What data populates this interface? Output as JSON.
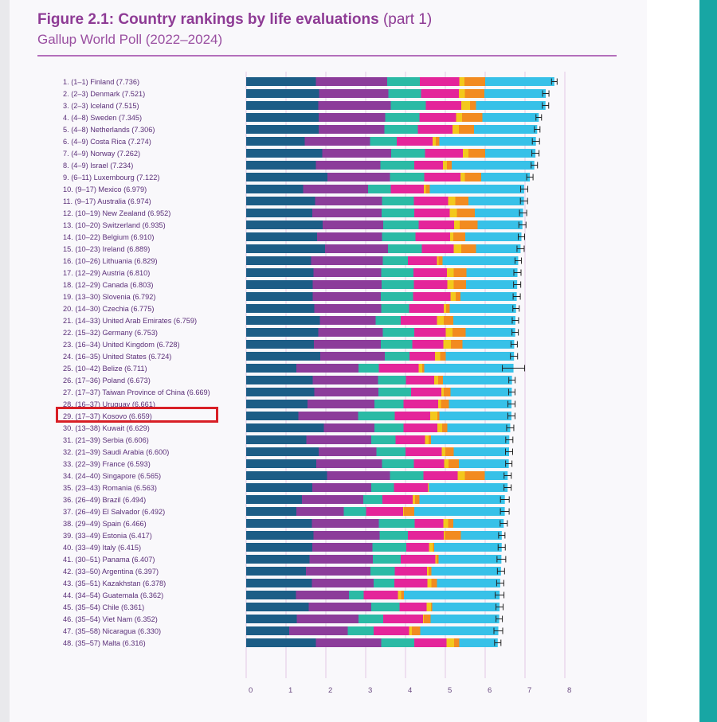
{
  "header": {
    "title": "Figure 2.1: Country rankings by life evaluations",
    "title_part": "(part 1)",
    "subtitle": "Gallup World Poll (2022–2024)"
  },
  "colors": {
    "dystopia_residual": "#37c1e8",
    "gdp": "#1c5d86",
    "social_support": "#8c3c9a",
    "healthy_life": "#2bbaa5",
    "freedom": "#e4259a",
    "generosity": "#f3c81c",
    "corruption": "#f28b20",
    "highlight": "#d81f26"
  },
  "highlight_rank": 29,
  "chart_data": {
    "type": "bar",
    "stacked": true,
    "orientation": "horizontal",
    "xlim": [
      0,
      8
    ],
    "x_ticks": [
      "0",
      "1",
      "2",
      "3",
      "4",
      "5",
      "6",
      "7",
      "8"
    ],
    "rows": [
      {
        "label": "1.   (1–1) Finland (7.736)",
        "value": 7.736,
        "ci": 0.07,
        "parts": [
          1.75,
          1.79,
          0.82,
          0.99,
          0.13,
          0.52
        ]
      },
      {
        "label": "2.   (2–3) Denmark (7.521)",
        "value": 7.521,
        "ci": 0.08,
        "parts": [
          1.83,
          1.74,
          0.82,
          0.95,
          0.15,
          0.49
        ]
      },
      {
        "label": "3.   (2–3) Iceland (7.515)",
        "value": 7.515,
        "ci": 0.08,
        "parts": [
          1.81,
          1.82,
          0.88,
          0.89,
          0.22,
          0.15
        ]
      },
      {
        "label": "4.   (4–8) Sweden (7.345)",
        "value": 7.345,
        "ci": 0.07,
        "parts": [
          1.82,
          1.67,
          0.86,
          0.92,
          0.15,
          0.51
        ]
      },
      {
        "label": "5.   (4–8) Netherlands (7.306)",
        "value": 7.306,
        "ci": 0.07,
        "parts": [
          1.82,
          1.65,
          0.84,
          0.87,
          0.16,
          0.38
        ]
      },
      {
        "label": "6.   (4–9) Costa Rica (7.274)",
        "value": 7.274,
        "ci": 0.09,
        "parts": [
          1.47,
          1.64,
          0.67,
          0.9,
          0.08,
          0.09
        ]
      },
      {
        "label": "7.   (4–9) Norway (7.262)",
        "value": 7.262,
        "ci": 0.09,
        "parts": [
          1.91,
          1.73,
          0.85,
          0.95,
          0.14,
          0.42
        ]
      },
      {
        "label": "8.   (4–9) Israel (7.234)",
        "value": 7.234,
        "ci": 0.08,
        "parts": [
          1.75,
          1.62,
          0.85,
          0.72,
          0.1,
          0.12
        ]
      },
      {
        "label": "9.   (6–11) Luxembourg (7.122)",
        "value": 7.122,
        "ci": 0.08,
        "parts": [
          2.04,
          1.57,
          0.86,
          0.91,
          0.11,
          0.41
        ]
      },
      {
        "label": "10.  (9–17) Mexico (6.979)",
        "value": 6.979,
        "ci": 0.09,
        "parts": [
          1.43,
          1.63,
          0.57,
          0.83,
          0.05,
          0.1
        ]
      },
      {
        "label": "11.   (9–17) Australia (6.974)",
        "value": 6.974,
        "ci": 0.09,
        "parts": [
          1.73,
          1.68,
          0.8,
          0.86,
          0.18,
          0.33
        ]
      },
      {
        "label": "12.  (10–19) New Zealand (6.952)",
        "value": 6.952,
        "ci": 0.09,
        "parts": [
          1.66,
          1.74,
          0.82,
          0.89,
          0.18,
          0.45
        ]
      },
      {
        "label": "13.  (10–20) Switzerland (6.935)",
        "value": 6.935,
        "ci": 0.09,
        "parts": [
          1.92,
          1.52,
          0.89,
          0.89,
          0.14,
          0.45
        ]
      },
      {
        "label": "14.  (10–22) Belgium (6.910)",
        "value": 6.91,
        "ci": 0.08,
        "parts": [
          1.78,
          1.63,
          0.84,
          0.87,
          0.08,
          0.3
        ]
      },
      {
        "label": "15.  (10–23) Ireland (6.889)",
        "value": 6.889,
        "ci": 0.09,
        "parts": [
          1.98,
          1.58,
          0.85,
          0.8,
          0.19,
          0.37
        ]
      },
      {
        "label": "16.  (10–26) Lithuania (6.829)",
        "value": 6.829,
        "ci": 0.08,
        "parts": [
          1.63,
          1.8,
          0.63,
          0.73,
          0.04,
          0.1
        ]
      },
      {
        "label": "17.  (12–29) Austria (6.810)",
        "value": 6.81,
        "ci": 0.09,
        "parts": [
          1.69,
          1.7,
          0.81,
          0.84,
          0.17,
          0.32
        ]
      },
      {
        "label": "18.  (12–29) Canada (6.803)",
        "value": 6.803,
        "ci": 0.09,
        "parts": [
          1.67,
          1.73,
          0.81,
          0.84,
          0.16,
          0.31
        ]
      },
      {
        "label": "19.  (13–30) Slovenia (6.792)",
        "value": 6.792,
        "ci": 0.09,
        "parts": [
          1.67,
          1.71,
          0.81,
          0.94,
          0.13,
          0.12
        ]
      },
      {
        "label": "20. (14–30) Czechia (6.775)",
        "value": 6.775,
        "ci": 0.08,
        "parts": [
          1.71,
          1.68,
          0.7,
          0.87,
          0.06,
          0.09
        ]
      },
      {
        "label": "21.  (14–33) United Arab Emirates (6.759)",
        "value": 6.759,
        "ci": 0.08,
        "parts": [
          1.85,
          1.4,
          0.63,
          0.91,
          0.17,
          0.24
        ]
      },
      {
        "label": "22.  (15–32) Germany (6.753)",
        "value": 6.753,
        "ci": 0.08,
        "parts": [
          1.81,
          1.62,
          0.79,
          0.79,
          0.17,
          0.33
        ]
      },
      {
        "label": "23.  (16–34) United Kingdom (6.728)",
        "value": 6.728,
        "ci": 0.08,
        "parts": [
          1.7,
          1.68,
          0.79,
          0.78,
          0.19,
          0.29
        ]
      },
      {
        "label": "24.  (16–35) United States (6.724)",
        "value": 6.724,
        "ci": 0.09,
        "parts": [
          1.86,
          1.62,
          0.62,
          0.64,
          0.13,
          0.14
        ]
      },
      {
        "label": "25.  (10–42) Belize (6.711)",
        "value": 6.711,
        "ci": 0.28,
        "parts": [
          1.26,
          1.56,
          0.51,
          1.0,
          0.09,
          0.05
        ]
      },
      {
        "label": "26.  (17–36) Poland (6.673)",
        "value": 6.673,
        "ci": 0.08,
        "parts": [
          1.67,
          1.64,
          0.7,
          0.71,
          0.1,
          0.12
        ]
      },
      {
        "label": "27.  (17–37) Taiwan Province of China (6.669)",
        "value": 6.669,
        "ci": 0.08,
        "parts": [
          1.71,
          1.61,
          0.82,
          0.76,
          0.06,
          0.17
        ]
      },
      {
        "label": "28.  (16–37) Uruguay (6.661)",
        "value": 6.661,
        "ci": 0.09,
        "parts": [
          1.54,
          1.68,
          0.73,
          0.87,
          0.07,
          0.2
        ]
      },
      {
        "label": "29.  (17–37) Kosovo (6.659)",
        "value": 6.659,
        "ci": 0.09,
        "parts": [
          1.31,
          1.5,
          0.92,
          0.89,
          0.18,
          0.05
        ]
      },
      {
        "label": "30.  (13–38) Kuwait (6.629)",
        "value": 6.629,
        "ci": 0.09,
        "parts": [
          1.95,
          1.27,
          0.73,
          0.85,
          0.12,
          0.13
        ]
      },
      {
        "label": "31.  (21–39) Serbia (6.606)",
        "value": 6.606,
        "ci": 0.09,
        "parts": [
          1.51,
          1.63,
          0.61,
          0.74,
          0.09,
          0.06
        ]
      },
      {
        "label": "32.  (21–39) Saudi Arabia (6.600)",
        "value": 6.6,
        "ci": 0.09,
        "parts": [
          1.82,
          1.45,
          0.73,
          0.91,
          0.09,
          0.21
        ]
      },
      {
        "label": "33.  (22–39) France (6.593)",
        "value": 6.593,
        "ci": 0.08,
        "parts": [
          1.76,
          1.65,
          0.8,
          0.76,
          0.11,
          0.26
        ]
      },
      {
        "label": "34.  (24–40) Singapore (6.565)",
        "value": 6.565,
        "ci": 0.09,
        "parts": [
          2.03,
          1.58,
          0.84,
          0.86,
          0.18,
          0.5
        ]
      },
      {
        "label": "35.  (23–43) Romania (6.563)",
        "value": 6.563,
        "ci": 0.09,
        "parts": [
          1.66,
          1.48,
          0.57,
          0.85,
          0.01,
          0.02
        ]
      },
      {
        "label": "36.  (26–49) Brazil (6.494)",
        "value": 6.494,
        "ci": 0.11,
        "parts": [
          1.4,
          1.54,
          0.48,
          0.76,
          0.06,
          0.11
        ]
      },
      {
        "label": "37.  (26–49) El Salvador (6.492)",
        "value": 6.492,
        "ci": 0.11,
        "parts": [
          1.26,
          1.19,
          0.56,
          0.93,
          0.02,
          0.26
        ]
      },
      {
        "label": "38.  (29–49) Spain (6.466)",
        "value": 6.466,
        "ci": 0.09,
        "parts": [
          1.65,
          1.68,
          0.9,
          0.72,
          0.12,
          0.13
        ]
      },
      {
        "label": "39.  (33–49) Estonia (6.417)",
        "value": 6.417,
        "ci": 0.08,
        "parts": [
          1.69,
          1.66,
          0.71,
          0.9,
          0.03,
          0.4
        ]
      },
      {
        "label": "40.  (33–49) Italy (6.415)",
        "value": 6.415,
        "ci": 0.09,
        "parts": [
          1.66,
          1.51,
          0.85,
          0.57,
          0.1,
          0.03
        ]
      },
      {
        "label": "41.  (30–51) Panama (6.407)",
        "value": 6.407,
        "ci": 0.11,
        "parts": [
          1.59,
          1.59,
          0.7,
          0.87,
          0.03,
          0.05
        ]
      },
      {
        "label": "42.  (33–50) Argentina (6.397)",
        "value": 6.397,
        "ci": 0.09,
        "parts": [
          1.5,
          1.62,
          0.61,
          0.81,
          0.04,
          0.07
        ]
      },
      {
        "label": "43.  (35–51) Kazakhstan (6.378)",
        "value": 6.378,
        "ci": 0.09,
        "parts": [
          1.65,
          1.55,
          0.52,
          0.83,
          0.1,
          0.14
        ]
      },
      {
        "label": "44.  (34–54) Guatemala (6.362)",
        "value": 6.362,
        "ci": 0.11,
        "parts": [
          1.25,
          1.33,
          0.37,
          0.86,
          0.08,
          0.07
        ]
      },
      {
        "label": "45.  (35–54) Chile (6.361)",
        "value": 6.361,
        "ci": 0.09,
        "parts": [
          1.57,
          1.57,
          0.71,
          0.68,
          0.11,
          0.03
        ]
      },
      {
        "label": "46.  (35–54) Viet Nam (6.352)",
        "value": 6.352,
        "ci": 0.08,
        "parts": [
          1.27,
          1.55,
          0.62,
          1.0,
          0.02,
          0.17
        ]
      },
      {
        "label": "47.  (35–58) Nicaragua (6.330)",
        "value": 6.33,
        "ci": 0.11,
        "parts": [
          1.08,
          1.47,
          0.65,
          0.89,
          0.07,
          0.21
        ]
      },
      {
        "label": "48.  (35–57) Malta (6.316)",
        "value": 6.316,
        "ci": 0.08,
        "parts": [
          1.75,
          1.64,
          0.83,
          0.81,
          0.19,
          0.13
        ]
      }
    ]
  }
}
